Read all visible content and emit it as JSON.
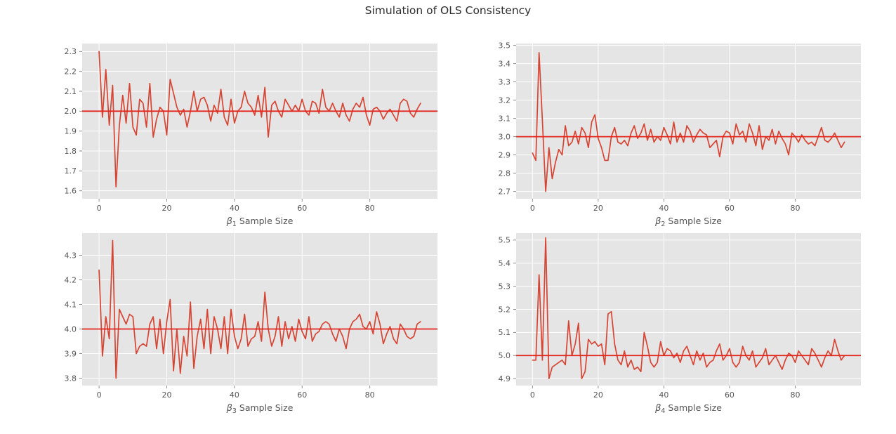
{
  "title": "Simulation of OLS Consistency",
  "style": {
    "figure_bg": "#ffffff",
    "axes_bg": "#e5e5e5",
    "grid_color": "#ffffff",
    "tick_color": "#8a8a8a",
    "tick_label_color": "#555555",
    "axis_label_color": "#555555",
    "title_color": "#2e2e2e",
    "series_color": "#d64533",
    "ref_line_color": "#e4251c"
  },
  "chart_data": [
    {
      "type": "line",
      "xlabel": "β₁ Sample Size",
      "xlabel_symbol": "β",
      "xlabel_subscript": "1",
      "xlabel_suffix": " Sample Size",
      "ylabel": "",
      "true_value": 2.0,
      "x_start": 0,
      "x_step": 1,
      "xlim": [
        -5,
        100
      ],
      "ylim": [
        1.56,
        2.34
      ],
      "xticks": [
        0,
        20,
        40,
        60,
        80
      ],
      "yticks": [
        1.6,
        1.7,
        1.8,
        1.9,
        2.0,
        2.1,
        2.2,
        2.3
      ],
      "grid": true,
      "values": [
        2.3,
        1.97,
        2.21,
        1.93,
        2.13,
        1.62,
        1.93,
        2.08,
        1.94,
        2.14,
        1.92,
        1.88,
        2.06,
        2.04,
        1.92,
        2.14,
        1.87,
        1.96,
        2.02,
        2.0,
        1.88,
        2.16,
        2.09,
        2.02,
        1.98,
        2.01,
        1.92,
        2.0,
        2.1,
        2.0,
        2.06,
        2.07,
        2.03,
        1.95,
        2.03,
        1.99,
        2.11,
        1.97,
        1.93,
        2.06,
        1.94,
        2.0,
        2.02,
        2.1,
        2.04,
        2.02,
        1.98,
        2.08,
        1.97,
        2.12,
        1.87,
        2.03,
        2.05,
        2.0,
        1.97,
        2.06,
        2.03,
        2.0,
        2.03,
        2.0,
        2.06,
        2.0,
        1.98,
        2.05,
        2.04,
        1.99,
        2.11,
        2.02,
        2.0,
        2.04,
        2.0,
        1.97,
        2.04,
        1.98,
        1.95,
        2.01,
        2.04,
        2.02,
        2.07,
        1.98,
        1.93,
        2.01,
        2.02,
        2.0,
        1.96,
        1.99,
        2.01,
        1.98,
        1.95,
        2.04,
        2.06,
        2.05,
        1.99,
        1.97,
        2.01,
        2.04
      ]
    },
    {
      "type": "line",
      "xlabel": "β₂ Sample Size",
      "xlabel_symbol": "β",
      "xlabel_subscript": "2",
      "xlabel_suffix": " Sample Size",
      "ylabel": "",
      "true_value": 3.0,
      "x_start": 0,
      "x_step": 1,
      "xlim": [
        -5,
        100
      ],
      "ylim": [
        2.66,
        3.51
      ],
      "xticks": [
        0,
        20,
        40,
        60,
        80
      ],
      "yticks": [
        2.7,
        2.8,
        2.9,
        3.0,
        3.1,
        3.2,
        3.3,
        3.4,
        3.5
      ],
      "grid": true,
      "values": [
        2.91,
        2.87,
        3.46,
        3.09,
        2.7,
        2.94,
        2.77,
        2.86,
        2.93,
        2.9,
        3.06,
        2.95,
        2.97,
        3.03,
        2.96,
        3.05,
        3.02,
        2.94,
        3.08,
        3.12,
        2.99,
        2.94,
        2.87,
        2.87,
        3.0,
        3.05,
        2.97,
        2.96,
        2.98,
        2.95,
        3.02,
        3.06,
        2.99,
        3.02,
        3.07,
        2.98,
        3.04,
        2.97,
        3.0,
        2.98,
        3.05,
        3.01,
        2.96,
        3.08,
        2.97,
        3.02,
        2.97,
        3.06,
        3.03,
        2.97,
        3.01,
        3.04,
        3.02,
        3.01,
        2.94,
        2.96,
        2.98,
        2.89,
        3.0,
        3.03,
        3.02,
        2.96,
        3.07,
        3.01,
        3.03,
        2.97,
        3.07,
        3.02,
        2.95,
        3.06,
        2.93,
        3.0,
        2.98,
        3.04,
        2.96,
        3.03,
        2.99,
        2.96,
        2.9,
        3.02,
        3.0,
        2.97,
        3.01,
        2.98,
        2.96,
        2.97,
        2.95,
        3.0,
        3.05,
        2.98,
        2.97,
        2.99,
        3.02,
        2.98,
        2.94,
        2.97
      ]
    },
    {
      "type": "line",
      "xlabel": "β₃ Sample Size",
      "xlabel_symbol": "β",
      "xlabel_subscript": "3",
      "xlabel_suffix": " Sample Size",
      "ylabel": "",
      "true_value": 4.0,
      "x_start": 0,
      "x_step": 1,
      "xlim": [
        -5,
        100
      ],
      "ylim": [
        3.77,
        4.39
      ],
      "xticks": [
        0,
        20,
        40,
        60,
        80
      ],
      "yticks": [
        3.8,
        3.9,
        4.0,
        4.1,
        4.2,
        4.3
      ],
      "grid": true,
      "values": [
        4.24,
        3.89,
        4.05,
        3.96,
        4.36,
        3.8,
        4.08,
        4.05,
        4.02,
        4.06,
        4.05,
        3.9,
        3.93,
        3.94,
        3.93,
        4.02,
        4.05,
        3.92,
        4.04,
        3.9,
        4.03,
        4.12,
        3.83,
        4.0,
        3.82,
        3.97,
        3.89,
        4.11,
        3.84,
        3.97,
        4.04,
        3.92,
        4.08,
        3.9,
        4.05,
        4.0,
        3.92,
        4.05,
        3.9,
        4.08,
        3.97,
        3.92,
        3.96,
        4.06,
        3.93,
        3.96,
        3.97,
        4.03,
        3.95,
        4.15,
        4.0,
        3.93,
        3.97,
        4.05,
        3.93,
        4.03,
        3.96,
        4.01,
        3.95,
        4.04,
        3.99,
        3.96,
        4.05,
        3.95,
        3.98,
        3.99,
        4.02,
        4.03,
        4.02,
        3.98,
        3.95,
        4.0,
        3.97,
        3.92,
        4.0,
        4.03,
        4.04,
        4.06,
        4.01,
        4.0,
        4.03,
        3.98,
        4.07,
        4.02,
        3.94,
        3.98,
        4.01,
        3.96,
        3.94,
        4.02,
        4.0,
        3.97,
        3.96,
        3.97,
        4.02,
        4.03
      ]
    },
    {
      "type": "line",
      "xlabel": "β₄ Sample Size",
      "xlabel_symbol": "β",
      "xlabel_subscript": "4",
      "xlabel_suffix": " Sample Size",
      "ylabel": "",
      "true_value": 5.0,
      "x_start": 0,
      "x_step": 1,
      "xlim": [
        -5,
        100
      ],
      "ylim": [
        4.87,
        5.53
      ],
      "xticks": [
        0,
        20,
        40,
        60,
        80
      ],
      "yticks": [
        4.9,
        5.0,
        5.1,
        5.2,
        5.3,
        5.4,
        5.5
      ],
      "grid": true,
      "values": [
        4.98,
        4.98,
        5.35,
        4.98,
        5.51,
        4.9,
        4.95,
        4.96,
        4.97,
        4.98,
        4.96,
        5.15,
        5.0,
        5.05,
        5.14,
        4.9,
        4.93,
        5.07,
        5.05,
        5.06,
        5.04,
        5.05,
        4.96,
        5.18,
        5.19,
        5.05,
        4.98,
        4.96,
        5.02,
        4.95,
        4.98,
        4.94,
        4.95,
        4.93,
        5.1,
        5.04,
        4.97,
        4.95,
        4.97,
        5.06,
        5.0,
        5.03,
        5.02,
        4.99,
        5.01,
        4.97,
        5.02,
        5.04,
        5.0,
        4.96,
        5.02,
        4.98,
        5.01,
        4.95,
        4.97,
        4.98,
        5.02,
        5.05,
        4.98,
        5.0,
        5.03,
        4.97,
        4.95,
        4.97,
        5.04,
        5.0,
        4.98,
        5.02,
        4.95,
        4.97,
        4.99,
        5.03,
        4.96,
        4.98,
        5.0,
        4.97,
        4.94,
        4.98,
        5.01,
        5.0,
        4.97,
        5.02,
        5.0,
        4.98,
        4.96,
        5.03,
        5.01,
        4.98,
        4.95,
        4.99,
        5.02,
        5.0,
        5.07,
        5.02,
        4.98,
        5.0
      ]
    }
  ]
}
